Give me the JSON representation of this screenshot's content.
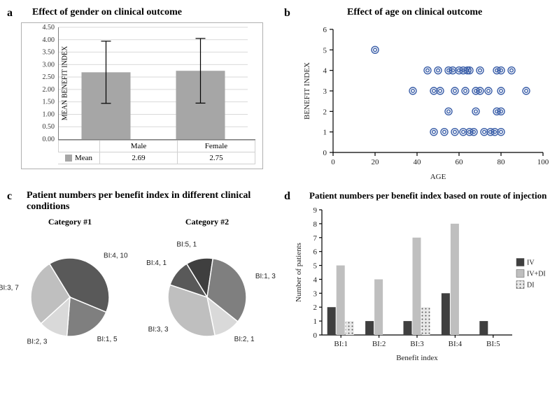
{
  "panelA": {
    "label": "a",
    "title": "Effect of gender on clinical outcome",
    "ylabel": "MEAN BENEFIT INDEX",
    "ylim": [
      0,
      4.5
    ],
    "ytick_step": 0.5,
    "categories": [
      "Male",
      "Female"
    ],
    "means": [
      2.69,
      2.75
    ],
    "err": [
      1.25,
      1.3
    ],
    "bar_color": "#a6a6a6",
    "grid_color": "#d9d9d9",
    "legend_row_label": "Mean",
    "mean_labels": [
      "2.69",
      "2.75"
    ]
  },
  "panelB": {
    "label": "b",
    "title": "Effect of age on clinical outcome",
    "xlabel": "AGE",
    "ylabel": "BENEFIT INDEX",
    "xlim": [
      0,
      100
    ],
    "xtick_step": 20,
    "ylim": [
      0,
      6
    ],
    "ytick_step": 1,
    "marker_stroke": "#3a5ea8",
    "points": [
      [
        20,
        5
      ],
      [
        38,
        3
      ],
      [
        45,
        4
      ],
      [
        48,
        1
      ],
      [
        48,
        3
      ],
      [
        50,
        4
      ],
      [
        51,
        3
      ],
      [
        53,
        1
      ],
      [
        55,
        2
      ],
      [
        55,
        4
      ],
      [
        57,
        4
      ],
      [
        58,
        1
      ],
      [
        58,
        3
      ],
      [
        60,
        4
      ],
      [
        62,
        1
      ],
      [
        62,
        4
      ],
      [
        63,
        3
      ],
      [
        64,
        4
      ],
      [
        65,
        1
      ],
      [
        65,
        4
      ],
      [
        67,
        1
      ],
      [
        68,
        2
      ],
      [
        68,
        3
      ],
      [
        70,
        3
      ],
      [
        70,
        4
      ],
      [
        72,
        1
      ],
      [
        74,
        3
      ],
      [
        75,
        1
      ],
      [
        77,
        1
      ],
      [
        78,
        2
      ],
      [
        78,
        4
      ],
      [
        80,
        1
      ],
      [
        80,
        2
      ],
      [
        80,
        3
      ],
      [
        80,
        4
      ],
      [
        85,
        4
      ],
      [
        92,
        3
      ]
    ]
  },
  "panelC": {
    "label": "c",
    "title": "Patient numbers per benefit index in different clinical conditions",
    "pies": [
      {
        "subtitle": "Category #1",
        "slices": [
          {
            "label": "BI:4, 10",
            "value": 10,
            "color": "#595959"
          },
          {
            "label": "BI:1, 5",
            "value": 5,
            "color": "#7f7f7f"
          },
          {
            "label": "BI:2, 3",
            "value": 3,
            "color": "#d9d9d9"
          },
          {
            "label": "BI:3, 7",
            "value": 7,
            "color": "#bfbfbf"
          }
        ]
      },
      {
        "subtitle": "Category #2",
        "slices": [
          {
            "label": "BI:5, 1",
            "value": 1,
            "color": "#3f3f3f"
          },
          {
            "label": "BI:1, 3",
            "value": 3,
            "color": "#7f7f7f"
          },
          {
            "label": "BI:2, 1",
            "value": 1,
            "color": "#d9d9d9"
          },
          {
            "label": "BI:3, 3",
            "value": 3,
            "color": "#bfbfbf"
          },
          {
            "label": "BI:4, 1",
            "value": 1,
            "color": "#595959"
          }
        ]
      }
    ]
  },
  "panelD": {
    "label": "d",
    "title": "Patient numbers per benefit index based on route of injection",
    "ylabel": "Number of patients",
    "xlabel": "Benefit index",
    "ylim": [
      0,
      9
    ],
    "ytick_step": 1,
    "categories": [
      "BI:1",
      "BI:2",
      "BI:3",
      "BI:4",
      "BI:5"
    ],
    "series": [
      {
        "name": "IV",
        "color": "#3f3f3f",
        "pattern": "solid",
        "values": [
          2,
          1,
          1,
          3,
          1
        ]
      },
      {
        "name": "IV+DI",
        "color": "#bfbfbf",
        "pattern": "solid",
        "values": [
          5,
          4,
          7,
          8,
          0
        ]
      },
      {
        "name": "DI",
        "color": "#8a8a8a",
        "pattern": "dots",
        "values": [
          1,
          0,
          2,
          0,
          0
        ]
      }
    ]
  }
}
